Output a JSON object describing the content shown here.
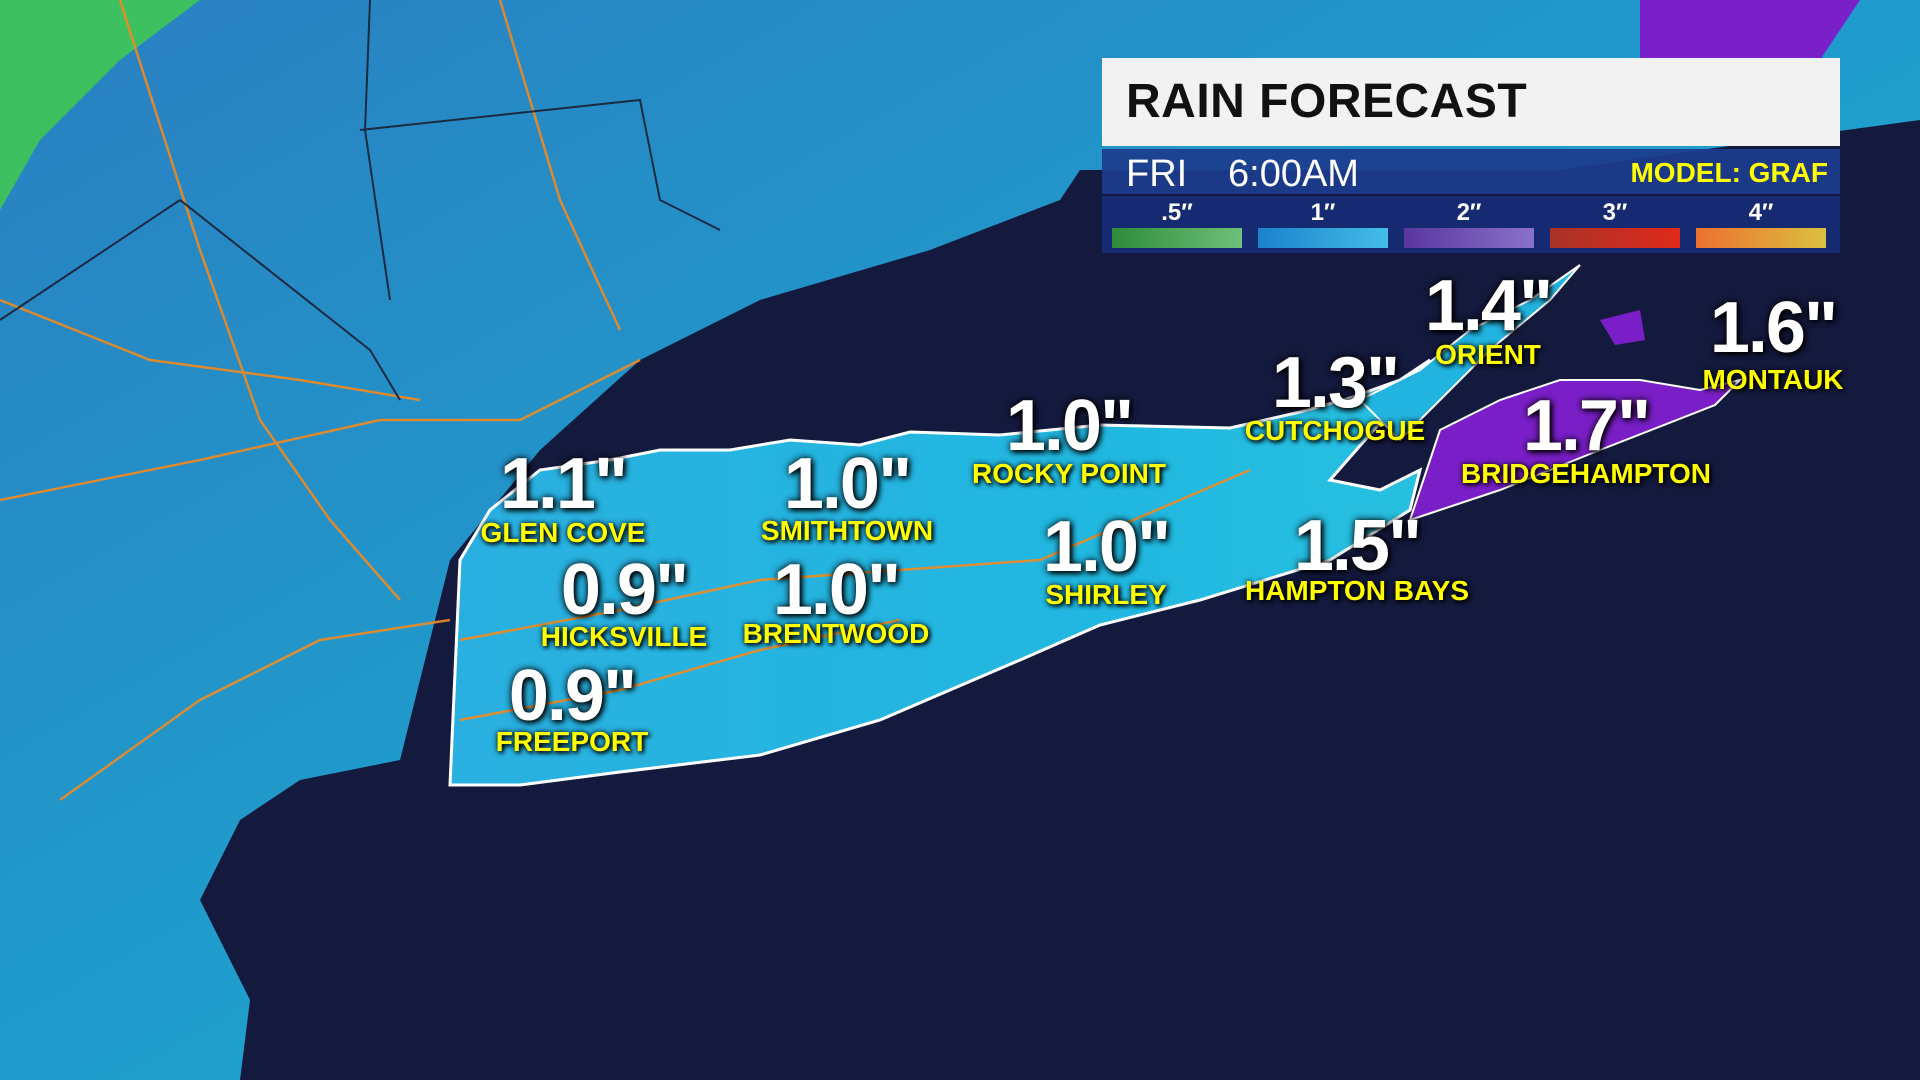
{
  "header": {
    "title": "RAIN FORECAST",
    "day": "FRI",
    "time": "6:00AM",
    "model": "MODEL: GRAF"
  },
  "legend": [
    {
      "label": ".5″",
      "from": "#2e8b3a",
      "to": "#6ec07a"
    },
    {
      "label": "1″",
      "from": "#1a82cc",
      "to": "#45bde8"
    },
    {
      "label": "2″",
      "from": "#5a36a0",
      "to": "#8a72c8"
    },
    {
      "label": "3″",
      "from": "#a83228",
      "to": "#e02a1a"
    },
    {
      "label": "4″",
      "from": "#ec7030",
      "to": "#dcc040"
    }
  ],
  "locations": [
    {
      "name": "GLEN COVE",
      "amount": "1.1\""
    },
    {
      "name": "SMITHTOWN",
      "amount": "1.0\""
    },
    {
      "name": "ROCKY POINT",
      "amount": "1.0\""
    },
    {
      "name": "CUTCHOGUE",
      "amount": "1.3\""
    },
    {
      "name": "ORIENT",
      "amount": "1.4\""
    },
    {
      "name": "MONTAUK",
      "amount": "1.6\""
    },
    {
      "name": "BRIDGEHAMPTON",
      "amount": "1.7\""
    },
    {
      "name": "HAMPTON BAYS",
      "amount": "1.5\""
    },
    {
      "name": "SHIRLEY",
      "amount": "1.0\""
    },
    {
      "name": "HICKSVILLE",
      "amount": "0.9\""
    },
    {
      "name": "BRENTWOOD",
      "amount": "1.0\""
    },
    {
      "name": "FREEPORT",
      "amount": "0.9\""
    }
  ],
  "colors": {
    "ocean": "#141a3e",
    "land_rain": "#22a8d8",
    "heavy_rain": "#7a1fc8",
    "roads": "#f08a20"
  }
}
